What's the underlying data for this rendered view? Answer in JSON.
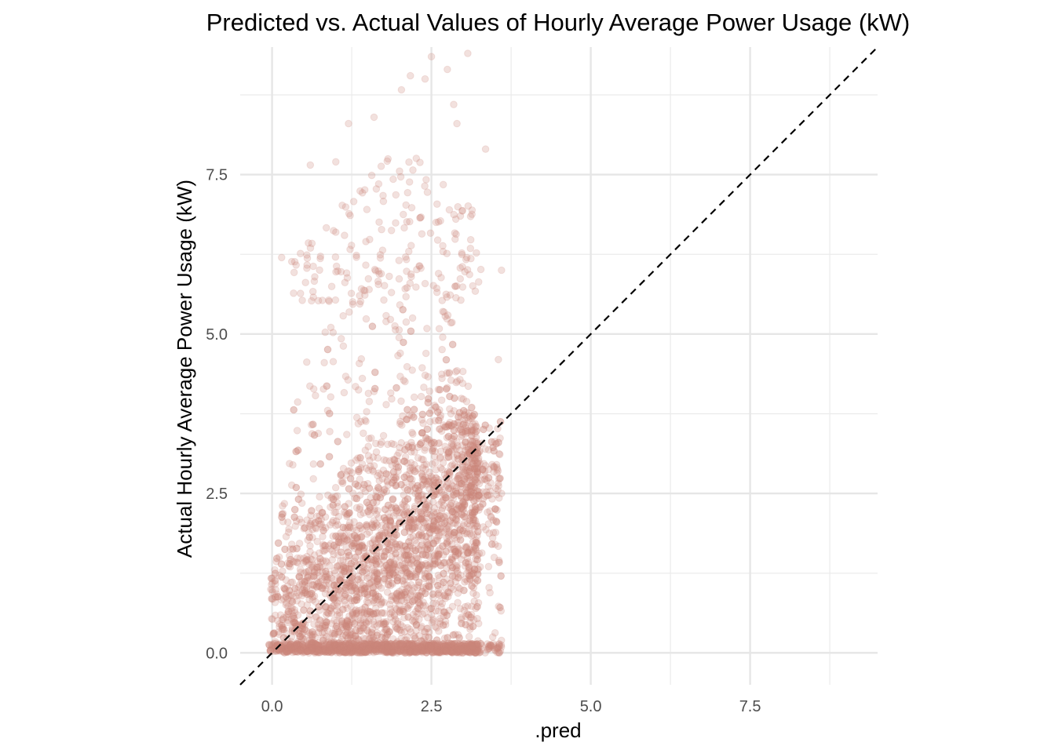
{
  "chart_data": {
    "type": "scatter",
    "title": "Predicted vs. Actual Values of Hourly Average Power Usage (kW)",
    "xlabel": ".pred",
    "ylabel": "Actual Hourly Average Power Usage (kW)",
    "xlim": [
      -0.5,
      9.5
    ],
    "ylim": [
      -0.5,
      9.5
    ],
    "x_ticks": [
      0.0,
      2.5,
      5.0,
      7.5
    ],
    "y_ticks": [
      0.0,
      2.5,
      5.0,
      7.5
    ],
    "x_tick_labels": [
      "0.0",
      "2.5",
      "5.0",
      "7.5"
    ],
    "y_tick_labels": [
      "0.0",
      "2.5",
      "5.0",
      "7.5"
    ],
    "grid": true,
    "point_color": "#cd877c",
    "point_alpha": 0.25,
    "reference_line": {
      "type": "identity",
      "slope": 1,
      "intercept": 0,
      "style": "dashed",
      "color": "#000000"
    },
    "sample_points": [
      {
        "x": 3.07,
        "y": 9.4
      },
      {
        "x": 2.5,
        "y": 9.35
      },
      {
        "x": 2.4,
        "y": 9.0
      },
      {
        "x": 2.17,
        "y": 9.05
      },
      {
        "x": 2.03,
        "y": 8.83
      },
      {
        "x": 2.75,
        "y": 9.15
      },
      {
        "x": 2.85,
        "y": 8.6
      },
      {
        "x": 1.2,
        "y": 8.3
      },
      {
        "x": 0.15,
        "y": 6.2
      },
      {
        "x": 3.6,
        "y": 6.0
      },
      {
        "x": 3.55,
        "y": 4.6
      },
      {
        "x": 3.6,
        "y": 2.5
      },
      {
        "x": 3.5,
        "y": 1.7
      },
      {
        "x": 0.6,
        "y": 7.65
      },
      {
        "x": 1.0,
        "y": 7.7
      },
      {
        "x": 1.6,
        "y": 8.4
      },
      {
        "x": 2.9,
        "y": 8.3
      },
      {
        "x": 3.35,
        "y": 7.9
      }
    ]
  }
}
